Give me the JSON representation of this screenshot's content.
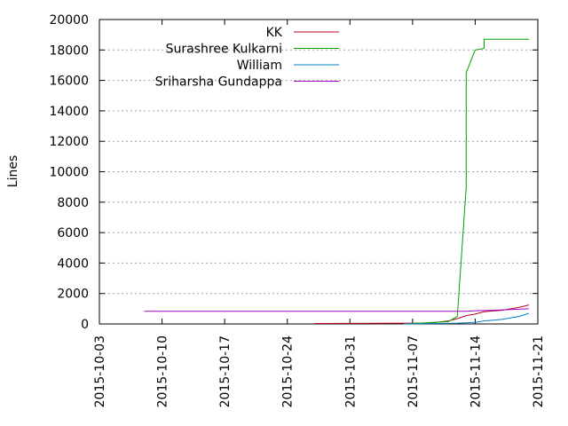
{
  "chart_data": {
    "type": "line",
    "title": "",
    "xlabel": "",
    "ylabel": "Lines",
    "xlim": [
      "2015-10-03",
      "2015-11-21"
    ],
    "ylim": [
      0,
      20000
    ],
    "grid": true,
    "legend_position": "top-left",
    "xticks": [
      "2015-10-03",
      "2015-10-10",
      "2015-10-17",
      "2015-10-24",
      "2015-10-31",
      "2015-11-07",
      "2015-11-14",
      "2015-11-21"
    ],
    "yticks": [
      "0",
      "2000",
      "4000",
      "6000",
      "8000",
      "10000",
      "12000",
      "14000",
      "16000",
      "18000",
      "20000"
    ],
    "series": [
      {
        "name": "KK",
        "color": "#c0002a",
        "points": [
          [
            "2015-10-27",
            30
          ],
          [
            "2015-11-09",
            60
          ],
          [
            "2015-11-10",
            120
          ],
          [
            "2015-11-11",
            200
          ],
          [
            "2015-11-12",
            350
          ],
          [
            "2015-11-13",
            550
          ],
          [
            "2015-11-14",
            650
          ],
          [
            "2015-11-15",
            800
          ],
          [
            "2015-11-16",
            850
          ],
          [
            "2015-11-17",
            900
          ],
          [
            "2015-11-18",
            1000
          ],
          [
            "2015-11-19",
            1100
          ],
          [
            "2015-11-20",
            1250
          ]
        ]
      },
      {
        "name": "Surashree Kulkarni",
        "color": "#00a000",
        "points": [
          [
            "2015-11-06",
            0
          ],
          [
            "2015-11-11",
            150
          ],
          [
            "2015-11-12",
            500
          ],
          [
            "2015-11-13",
            9000
          ],
          [
            "2015-11-13",
            16500
          ],
          [
            "2015-11-14",
            18000
          ],
          [
            "2015-11-15",
            18100
          ],
          [
            "2015-11-15",
            18700
          ],
          [
            "2015-11-20",
            18700
          ]
        ]
      },
      {
        "name": "William",
        "color": "#0080c0",
        "points": [
          [
            "2015-11-06",
            0
          ],
          [
            "2015-11-12",
            50
          ],
          [
            "2015-11-14",
            100
          ],
          [
            "2015-11-15",
            200
          ],
          [
            "2015-11-17",
            300
          ],
          [
            "2015-11-18",
            400
          ],
          [
            "2015-11-19",
            500
          ],
          [
            "2015-11-20",
            700
          ]
        ]
      },
      {
        "name": "Sriharsha Gundappa",
        "color": "#a000c0",
        "points": [
          [
            "2015-10-08",
            830
          ],
          [
            "2015-11-13",
            830
          ],
          [
            "2015-11-14",
            870
          ],
          [
            "2015-11-16",
            900
          ],
          [
            "2015-11-18",
            950
          ],
          [
            "2015-11-20",
            1000
          ]
        ]
      }
    ]
  }
}
